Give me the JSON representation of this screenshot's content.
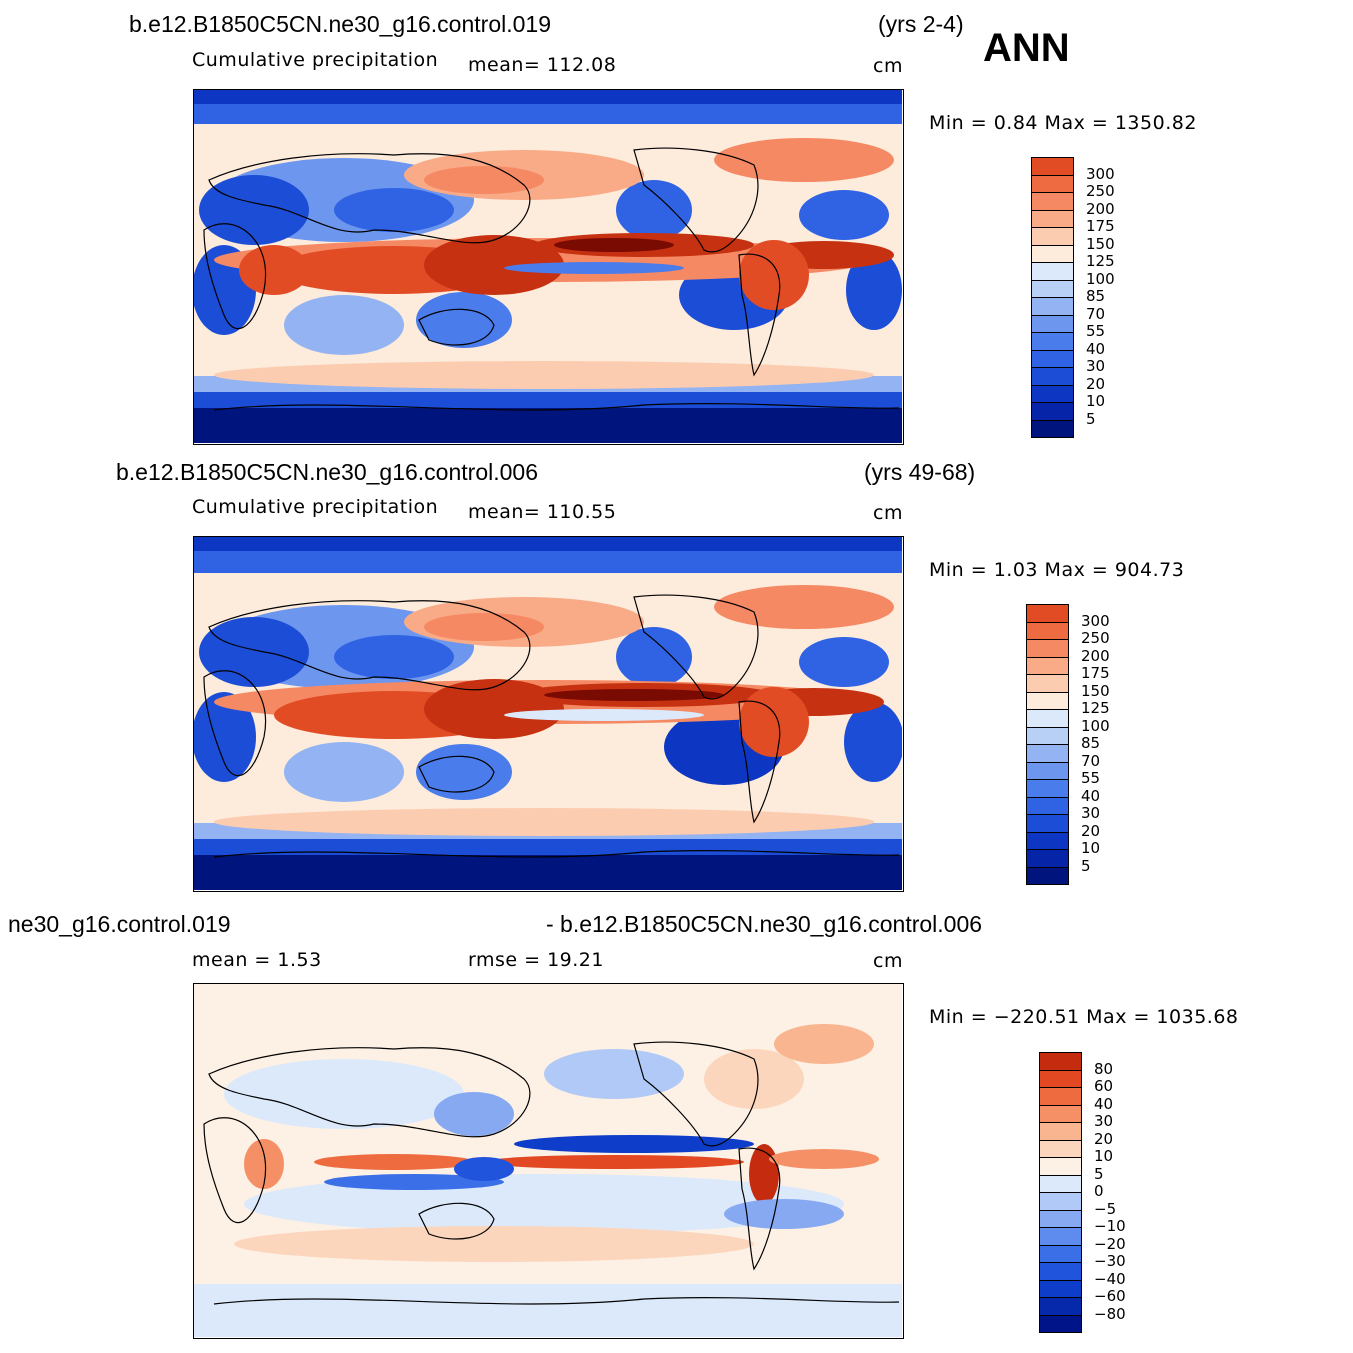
{
  "season": "ANN",
  "units": "cm",
  "colors": {
    "top_scale": [
      "#00147e",
      "#0624a8",
      "#0d37c2",
      "#1c4dd6",
      "#2f63e3",
      "#4b7ceb",
      "#6d96ef",
      "#93b3f2",
      "#b8cff6",
      "#dbe9fb",
      "#fdebdc",
      "#fcccb0",
      "#f9ab88",
      "#f58963",
      "#ee6a41",
      "#e24c25",
      "#c63111",
      "#9e1a06",
      "#7a0b02"
    ],
    "diff_scale": [
      "#001489",
      "#0628ab",
      "#0e3dc9",
      "#2054dd",
      "#3b6fe8",
      "#5e8bee",
      "#86a9f2",
      "#b1c9f6",
      "#dce9fb",
      "#fdf0e4",
      "#fcd6bc",
      "#f9b490",
      "#f59066",
      "#ee6b40",
      "#e24822",
      "#c52c0f",
      "#9c1404",
      "#780a02"
    ],
    "coast": "#000000"
  },
  "panels": [
    {
      "case": "b.e12.B1850C5CN.ne30_g16.control.019",
      "years": "(yrs 2-4)",
      "variable": "Cumulative precipitation",
      "stat_text": "mean=  112.08",
      "units": "cm",
      "minmax": "Min =    0.84  Max  =  1350.82",
      "levels": [
        "300",
        "250",
        "200",
        "175",
        "150",
        "125",
        "100",
        "85",
        "70",
        "55",
        "40",
        "30",
        "20",
        "10",
        "5"
      ]
    },
    {
      "case": "b.e12.B1850C5CN.ne30_g16.control.006",
      "years": "(yrs 49-68)",
      "variable": "Cumulative precipitation",
      "stat_text": "mean=  110.55",
      "units": "cm",
      "minmax": "Min =    1.03  Max  =  904.73",
      "levels": [
        "300",
        "250",
        "200",
        "175",
        "150",
        "125",
        "100",
        "85",
        "70",
        "55",
        "40",
        "30",
        "20",
        "10",
        "5"
      ]
    },
    {
      "case_left": "ne30_g16.control.019",
      "case_right": "- b.e12.B1850C5CN.ne30_g16.control.006",
      "mean_text": "mean  =      1.53",
      "rmse_text": "rmse  =     19.21",
      "units": "cm",
      "minmax": "Min  =  −220.51  Max  =  1035.68",
      "levels": [
        "80",
        "60",
        "40",
        "30",
        "20",
        "10",
        "5",
        "0",
        "−5",
        "−10",
        "−20",
        "−30",
        "−40",
        "−60",
        "−80"
      ]
    }
  ]
}
